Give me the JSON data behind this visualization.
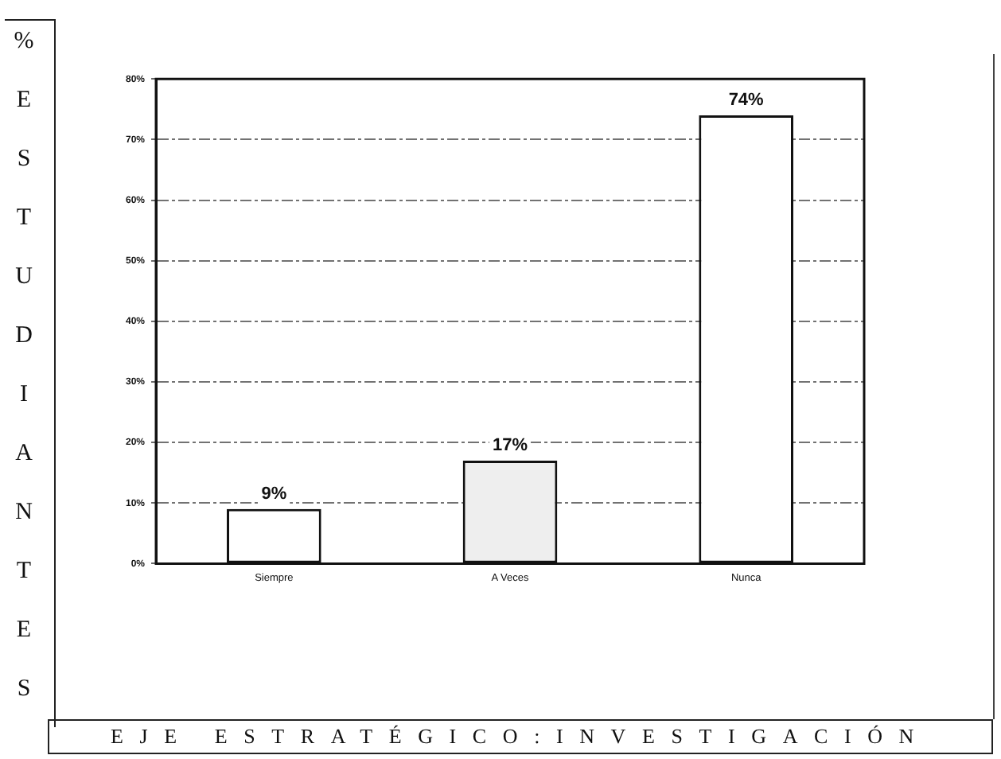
{
  "chart_data": {
    "type": "bar",
    "ylabel": "%ESTUDIANTES",
    "annotations": [
      "EJE ESTRATÉGICO:INVESTIGACIÓN"
    ],
    "categories": [
      "Siempre",
      "A Veces",
      "Nunca"
    ],
    "values": [
      9,
      17,
      74
    ],
    "colors": [
      "#ffffff",
      "#eeeeee",
      "#ffffff"
    ],
    "value_labels": [
      "9%",
      "17%",
      "74%"
    ],
    "ylim": [
      0,
      80
    ],
    "yticks": [
      {
        "value": 0,
        "label": "0%"
      },
      {
        "value": 10,
        "label": "10%"
      },
      {
        "value": 20,
        "label": "20%"
      },
      {
        "value": 30,
        "label": "30%"
      },
      {
        "value": 40,
        "label": "40%"
      },
      {
        "value": 50,
        "label": "50%"
      },
      {
        "value": 60,
        "label": "60%"
      },
      {
        "value": 70,
        "label": "70%"
      },
      {
        "value": 80,
        "label": "80%"
      }
    ],
    "grid": "y",
    "legend": false
  }
}
